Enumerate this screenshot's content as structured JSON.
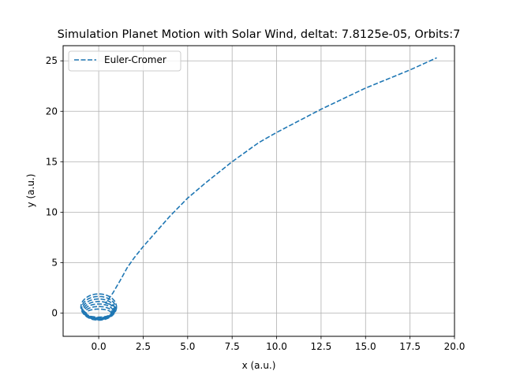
{
  "chart_data": {
    "type": "line",
    "title": "Simulation Planet Motion with Solar Wind, deltat: 7.8125e-05, Orbits:7",
    "xlabel": "x (a.u.)",
    "ylabel": "y (a.u.)",
    "xlim": [
      -2.0,
      20.0
    ],
    "ylim": [
      -2.3,
      26.5
    ],
    "xticks": [
      0.0,
      2.5,
      5.0,
      7.5,
      10.0,
      12.5,
      15.0,
      17.5,
      20.0
    ],
    "xtick_labels": [
      "0.0",
      "2.5",
      "5.0",
      "7.5",
      "10.0",
      "12.5",
      "15.0",
      "17.5",
      "20.0"
    ],
    "yticks": [
      0,
      5,
      10,
      15,
      20,
      25
    ],
    "ytick_labels": [
      "0",
      "5",
      "10",
      "15",
      "20",
      "25"
    ],
    "grid": true,
    "legend_position": "top-left",
    "series": [
      {
        "name": "Euler-Cromer",
        "color": "#1f77b4",
        "linestyle": "dashed",
        "loops": {
          "count": 7,
          "center_x": 0.0,
          "center_y_min": 0.0,
          "center_y_max": 0.6,
          "radius_x_min": 0.7,
          "radius_x_max": 1.0,
          "radius_y_min": 0.4,
          "radius_y_max": 1.3
        },
        "x": [
          0.4,
          0.8,
          1.2,
          1.6,
          2.0,
          2.5,
          3.0,
          4.0,
          5.0,
          6.0,
          7.5,
          9.0,
          10.0,
          12.5,
          15.0,
          17.5,
          19.0
        ],
        "y": [
          1.0,
          2.0,
          3.2,
          4.5,
          5.5,
          6.6,
          7.6,
          9.6,
          11.4,
          12.9,
          15.0,
          16.9,
          17.9,
          20.2,
          22.3,
          24.1,
          25.3
        ]
      }
    ]
  }
}
